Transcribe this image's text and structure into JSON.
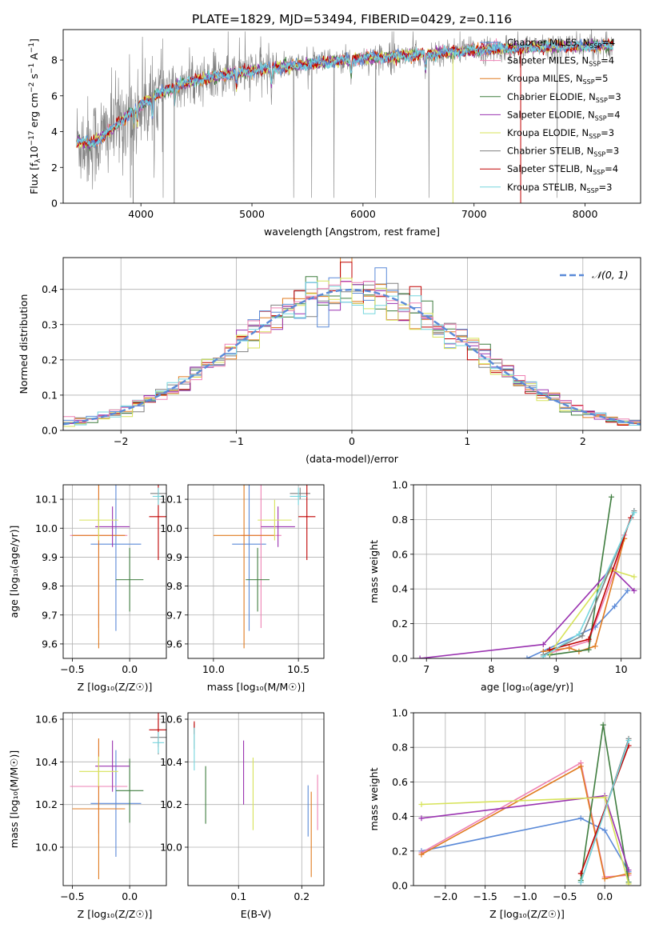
{
  "figure": {
    "title": "PLATE=1829, MJD=53494, FIBERID=0429, z=0.116"
  },
  "colors": {
    "chabrier_miles": "#5b8ad8",
    "salpeter_miles": "#ee82b4",
    "kroupa_miles": "#e07b20",
    "chabrier_elodie": "#3f7d3f",
    "salpeter_elodie": "#9a32b0",
    "kroupa_elodie": "#d7e35a",
    "chabrier_stelib": "#808080",
    "salpeter_stelib": "#c00000",
    "kroupa_stelib": "#76d6de",
    "gauss": "#5b8ad8",
    "grid": "#b0b0b0"
  },
  "legend_labels": [
    {
      "name": "Chabrier MILES",
      "n": "4",
      "color_key": "chabrier_miles"
    },
    {
      "name": "Salpeter MILES",
      "n": "4",
      "color_key": "salpeter_miles"
    },
    {
      "name": "Kroupa MILES",
      "n": "5",
      "color_key": "kroupa_miles"
    },
    {
      "name": "Chabrier ELODIE",
      "n": "3",
      "color_key": "chabrier_elodie"
    },
    {
      "name": "Salpeter ELODIE",
      "n": "4",
      "color_key": "salpeter_elodie"
    },
    {
      "name": "Kroupa ELODIE",
      "n": "3",
      "color_key": "kroupa_elodie"
    },
    {
      "name": "Chabrier STELIB",
      "n": "3",
      "color_key": "chabrier_stelib"
    },
    {
      "name": "Salpeter STELIB",
      "n": "4",
      "color_key": "salpeter_stelib"
    },
    {
      "name": "Kroupa STELIB",
      "n": "3",
      "color_key": "kroupa_stelib"
    }
  ],
  "nssp_prefix": "N",
  "nssp_sub": "SSP",
  "chart_data": [
    {
      "id": "spectrum",
      "type": "line",
      "xlabel": "wavelength [Angstrom, rest frame]",
      "ylabel": "Flux [f_λ 10^-17 erg cm^-2 s^-1 A^-1]",
      "xlim": [
        3300,
        8500
      ],
      "ylim": [
        0,
        9.7
      ],
      "xticks": [
        4000,
        5000,
        6000,
        7000,
        8000
      ],
      "yticks": [
        0,
        2,
        4,
        6,
        8
      ],
      "grid": false,
      "legend": "top-right",
      "continuum": [
        [
          3420,
          3.5
        ],
        [
          3550,
          3.3
        ],
        [
          3650,
          3.7
        ],
        [
          3800,
          4.5
        ],
        [
          3950,
          5.3
        ],
        [
          4100,
          5.9
        ],
        [
          4300,
          6.5
        ],
        [
          4500,
          6.9
        ],
        [
          4800,
          7.2
        ],
        [
          5100,
          7.5
        ],
        [
          5400,
          7.7
        ],
        [
          5700,
          7.9
        ],
        [
          6000,
          8.1
        ],
        [
          6300,
          8.2
        ],
        [
          6600,
          8.35
        ],
        [
          6900,
          8.5
        ],
        [
          7200,
          8.6
        ],
        [
          7500,
          8.7
        ],
        [
          7800,
          8.75
        ],
        [
          8050,
          8.8
        ],
        [
          8250,
          8.8
        ]
      ],
      "absorption_lines": [
        [
          3934,
          0.8
        ],
        [
          3969,
          0.8
        ],
        [
          4102,
          1.2
        ],
        [
          4304,
          0.9
        ],
        [
          4861,
          0.6
        ],
        [
          5175,
          0.9
        ],
        [
          5893,
          0.8
        ],
        [
          6563,
          0.8
        ],
        [
          8498,
          0.5
        ],
        [
          8542,
          0.7
        ]
      ]
    },
    {
      "id": "residuals",
      "type": "histogram",
      "xlabel": "(data-model)/error",
      "ylabel": "Normed distribution",
      "xlim": [
        -2.5,
        2.5
      ],
      "ylim": [
        0,
        0.49
      ],
      "xticks": [
        -2,
        -1,
        0,
        1,
        2
      ],
      "yticks": [
        0.0,
        0.1,
        0.2,
        0.3,
        0.4
      ],
      "grid": true,
      "legend": "top-right",
      "gauss_label": "𝒩(0, 1)",
      "bin_width": 0.1
    },
    {
      "id": "age_vs_Z",
      "type": "errorbar",
      "xlabel": "Z [log₁₀(Z/Z☉)]",
      "ylabel": "age  [log₁₀(age/yr)]",
      "xlim": [
        -0.58,
        0.32
      ],
      "ylim": [
        9.55,
        10.15
      ],
      "xticks": [
        -0.5,
        0.0
      ],
      "yticks": [
        9.6,
        9.7,
        9.8,
        9.9,
        10.0,
        10.1
      ],
      "grid": true,
      "points": [
        {
          "k": "chabrier_miles",
          "x": -0.12,
          "xe": 0.22,
          "y": 9.945,
          "ye": 0.3
        },
        {
          "k": "salpeter_miles",
          "x": -0.27,
          "xe": 0.25,
          "y": 9.975,
          "ye": 0.32
        },
        {
          "k": "kroupa_miles",
          "x": -0.27,
          "xe": 0.23,
          "y": 9.975,
          "ye": 0.39
        },
        {
          "k": "chabrier_elodie",
          "x": 0.0,
          "xe": 0.12,
          "y": 9.822,
          "ye": 0.11
        },
        {
          "k": "salpeter_elodie",
          "x": -0.15,
          "xe": 0.15,
          "y": 10.005,
          "ye": 0.07
        },
        {
          "k": "kroupa_elodie",
          "x": -0.27,
          "xe": 0.17,
          "y": 10.028,
          "ye": 0.07
        },
        {
          "k": "chabrier_stelib",
          "x": 0.25,
          "xe": 0.07,
          "y": 10.12,
          "ye": 0.02
        },
        {
          "k": "salpeter_stelib",
          "x": 0.25,
          "xe": 0.08,
          "y": 10.04,
          "ye": 0.15
        },
        {
          "k": "kroupa_stelib",
          "x": 0.25,
          "xe": 0.05,
          "y": 10.11,
          "ye": 0.03
        }
      ]
    },
    {
      "id": "age_vs_mass",
      "type": "errorbar",
      "xlabel": "mass [log₁₀(M/M☉)]",
      "ylabel": "",
      "xlim": [
        9.85,
        10.65
      ],
      "ylim": [
        9.55,
        10.15
      ],
      "xticks": [
        10.0,
        10.5
      ],
      "yticks": [
        9.6,
        9.7,
        9.8,
        9.9,
        10.0,
        10.1
      ],
      "grid": true,
      "points": [
        {
          "k": "chabrier_miles",
          "x": 10.21,
          "xe": 0.1,
          "y": 9.945,
          "ye": 0.3
        },
        {
          "k": "salpeter_miles",
          "x": 10.28,
          "xe": 0.12,
          "y": 9.975,
          "ye": 0.32
        },
        {
          "k": "kroupa_miles",
          "x": 10.18,
          "xe": 0.18,
          "y": 9.975,
          "ye": 0.39
        },
        {
          "k": "chabrier_elodie",
          "x": 10.26,
          "xe": 0.07,
          "y": 9.822,
          "ye": 0.11
        },
        {
          "k": "salpeter_elodie",
          "x": 10.38,
          "xe": 0.1,
          "y": 10.005,
          "ye": 0.07
        },
        {
          "k": "kroupa_elodie",
          "x": 10.36,
          "xe": 0.1,
          "y": 10.028,
          "ye": 0.07
        },
        {
          "k": "chabrier_stelib",
          "x": 10.51,
          "xe": 0.06,
          "y": 10.12,
          "ye": 0.02
        },
        {
          "k": "salpeter_stelib",
          "x": 10.55,
          "xe": 0.05,
          "y": 10.04,
          "ye": 0.15
        },
        {
          "k": "kroupa_stelib",
          "x": 10.5,
          "xe": 0.05,
          "y": 10.11,
          "ye": 0.03
        }
      ]
    },
    {
      "id": "mass_weight_vs_age",
      "type": "line",
      "xlabel": "age  [log₁₀(age/yr)]",
      "ylabel": "mass weight",
      "xlim": [
        6.8,
        10.3
      ],
      "ylim": [
        0,
        1
      ],
      "xticks": [
        7,
        8,
        9,
        10
      ],
      "yticks": [
        0.0,
        0.2,
        0.4,
        0.6,
        0.8,
        1.0
      ],
      "grid": true,
      "series": [
        {
          "k": "chabrier_miles",
          "x": [
            8.55,
            9.6,
            9.9,
            10.1
          ],
          "y": [
            0.0,
            0.18,
            0.3,
            0.39
          ]
        },
        {
          "k": "salpeter_miles",
          "x": [
            8.9,
            9.5,
            9.9,
            10.05
          ],
          "y": [
            0.03,
            0.1,
            0.5,
            0.71
          ]
        },
        {
          "k": "kroupa_miles",
          "x": [
            8.8,
            9.2,
            9.35,
            9.6,
            10.05
          ],
          "y": [
            0.04,
            0.06,
            0.04,
            0.07,
            0.69
          ]
        },
        {
          "k": "chabrier_elodie",
          "x": [
            8.9,
            9.5,
            9.85
          ],
          "y": [
            0.02,
            0.05,
            0.93
          ]
        },
        {
          "k": "salpeter_elodie",
          "x": [
            6.9,
            8.8,
            9.85,
            10.2
          ],
          "y": [
            0.0,
            0.08,
            0.52,
            0.39
          ]
        },
        {
          "k": "kroupa_elodie",
          "x": [
            8.9,
            9.85,
            10.2
          ],
          "y": [
            0.03,
            0.51,
            0.47
          ]
        },
        {
          "k": "chabrier_stelib",
          "x": [
            8.8,
            9.4,
            10.2
          ],
          "y": [
            0.02,
            0.13,
            0.85
          ]
        },
        {
          "k": "salpeter_stelib",
          "x": [
            8.9,
            9.5,
            10.15
          ],
          "y": [
            0.05,
            0.11,
            0.81
          ]
        },
        {
          "k": "kroupa_stelib",
          "x": [
            8.8,
            9.35,
            10.2
          ],
          "y": [
            0.01,
            0.14,
            0.84
          ]
        }
      ]
    },
    {
      "id": "mass_vs_Z",
      "type": "errorbar",
      "xlabel": "Z [log₁₀(Z/Z☉)]",
      "ylabel": "mass [log₁₀(M/M☉)]",
      "xlim": [
        -0.58,
        0.32
      ],
      "ylim": [
        9.82,
        10.63
      ],
      "xticks": [
        -0.5,
        0.0
      ],
      "yticks": [
        10.0,
        10.2,
        10.4,
        10.6
      ],
      "grid": true,
      "points": [
        {
          "k": "chabrier_miles",
          "x": -0.12,
          "xe": 0.22,
          "y": 10.205,
          "ye": 0.25
        },
        {
          "k": "salpeter_miles",
          "x": -0.27,
          "xe": 0.25,
          "y": 10.285,
          "ye": 0.22
        },
        {
          "k": "kroupa_miles",
          "x": -0.27,
          "xe": 0.23,
          "y": 10.18,
          "ye": 0.33
        },
        {
          "k": "chabrier_elodie",
          "x": 0.0,
          "xe": 0.12,
          "y": 10.265,
          "ye": 0.15
        },
        {
          "k": "salpeter_elodie",
          "x": -0.15,
          "xe": 0.15,
          "y": 10.38,
          "ye": 0.12
        },
        {
          "k": "kroupa_elodie",
          "x": -0.27,
          "xe": 0.17,
          "y": 10.355,
          "ye": 0.07
        },
        {
          "k": "chabrier_stelib",
          "x": 0.25,
          "xe": 0.07,
          "y": 10.515,
          "ye": 0.08
        },
        {
          "k": "salpeter_stelib",
          "x": 0.25,
          "xe": 0.08,
          "y": 10.55,
          "ye": 0.08
        },
        {
          "k": "kroupa_stelib",
          "x": 0.25,
          "xe": 0.05,
          "y": 10.49,
          "ye": 0.05
        }
      ]
    },
    {
      "id": "mass_vs_ebv",
      "type": "errorbar",
      "xlabel": "E(B-V)",
      "ylabel": "",
      "xlim": [
        0.02,
        0.235
      ],
      "ylim": [
        9.82,
        10.63
      ],
      "xticks": [
        0.1,
        0.2
      ],
      "yticks": [
        10.0,
        10.2,
        10.4,
        10.6
      ],
      "grid": true,
      "points": [
        {
          "k": "chabrier_miles",
          "x": 0.21,
          "xe": 0,
          "y": 10.17,
          "ye": 0.12
        },
        {
          "k": "salpeter_miles",
          "x": 0.225,
          "xe": 0,
          "y": 10.21,
          "ye": 0.13
        },
        {
          "k": "kroupa_miles",
          "x": 0.215,
          "xe": 0,
          "y": 10.06,
          "ye": 0.2
        },
        {
          "k": "chabrier_elodie",
          "x": 0.048,
          "xe": 0,
          "y": 10.245,
          "ye": 0.135
        },
        {
          "k": "salpeter_elodie",
          "x": 0.108,
          "xe": 0,
          "y": 10.35,
          "ye": 0.15
        },
        {
          "k": "kroupa_elodie",
          "x": 0.123,
          "xe": 0,
          "y": 10.25,
          "ye": 0.17
        },
        {
          "k": "chabrier_stelib",
          "x": 0.03,
          "xe": 0,
          "y": 10.52,
          "ye": 0.06
        },
        {
          "k": "salpeter_stelib",
          "x": 0.03,
          "xe": 0,
          "y": 10.56,
          "ye": 0.03
        },
        {
          "k": "kroupa_stelib",
          "x": 0.03,
          "xe": 0,
          "y": 10.46,
          "ye": 0.1
        }
      ]
    },
    {
      "id": "mass_weight_vs_Z",
      "type": "line",
      "xlabel": "Z [log₁₀(Z/Z☉)]",
      "ylabel": "mass weight",
      "xlim": [
        -2.4,
        0.45
      ],
      "ylim": [
        0,
        1
      ],
      "xticks": [
        -2.0,
        -1.5,
        -1.0,
        -0.5,
        0.0
      ],
      "yticks": [
        0.0,
        0.2,
        0.4,
        0.6,
        0.8,
        1.0
      ],
      "grid": true,
      "series": [
        {
          "k": "chabrier_miles",
          "x": [
            -2.3,
            -0.3,
            0.0,
            0.3
          ],
          "y": [
            0.2,
            0.39,
            0.32,
            0.08
          ]
        },
        {
          "k": "salpeter_miles",
          "x": [
            -2.3,
            -0.3,
            0.0,
            0.3
          ],
          "y": [
            0.19,
            0.71,
            0.05,
            0.06
          ]
        },
        {
          "k": "kroupa_miles",
          "x": [
            -2.3,
            -0.3,
            0.0,
            0.3
          ],
          "y": [
            0.18,
            0.69,
            0.04,
            0.07
          ]
        },
        {
          "k": "chabrier_elodie",
          "x": [
            -0.3,
            -0.02,
            0.3
          ],
          "y": [
            0.03,
            0.93,
            0.02
          ]
        },
        {
          "k": "salpeter_elodie",
          "x": [
            -2.3,
            0.0,
            0.3
          ],
          "y": [
            0.39,
            0.52,
            0.09
          ]
        },
        {
          "k": "kroupa_elodie",
          "x": [
            -2.3,
            0.0,
            0.3
          ],
          "y": [
            0.47,
            0.51,
            0.01
          ]
        },
        {
          "k": "chabrier_stelib",
          "x": [
            -0.3,
            0.3
          ],
          "y": [
            0.02,
            0.85
          ]
        },
        {
          "k": "salpeter_stelib",
          "x": [
            -0.3,
            0.3
          ],
          "y": [
            0.07,
            0.81
          ]
        },
        {
          "k": "kroupa_stelib",
          "x": [
            -0.3,
            0.3
          ],
          "y": [
            0.02,
            0.84
          ]
        }
      ]
    }
  ]
}
